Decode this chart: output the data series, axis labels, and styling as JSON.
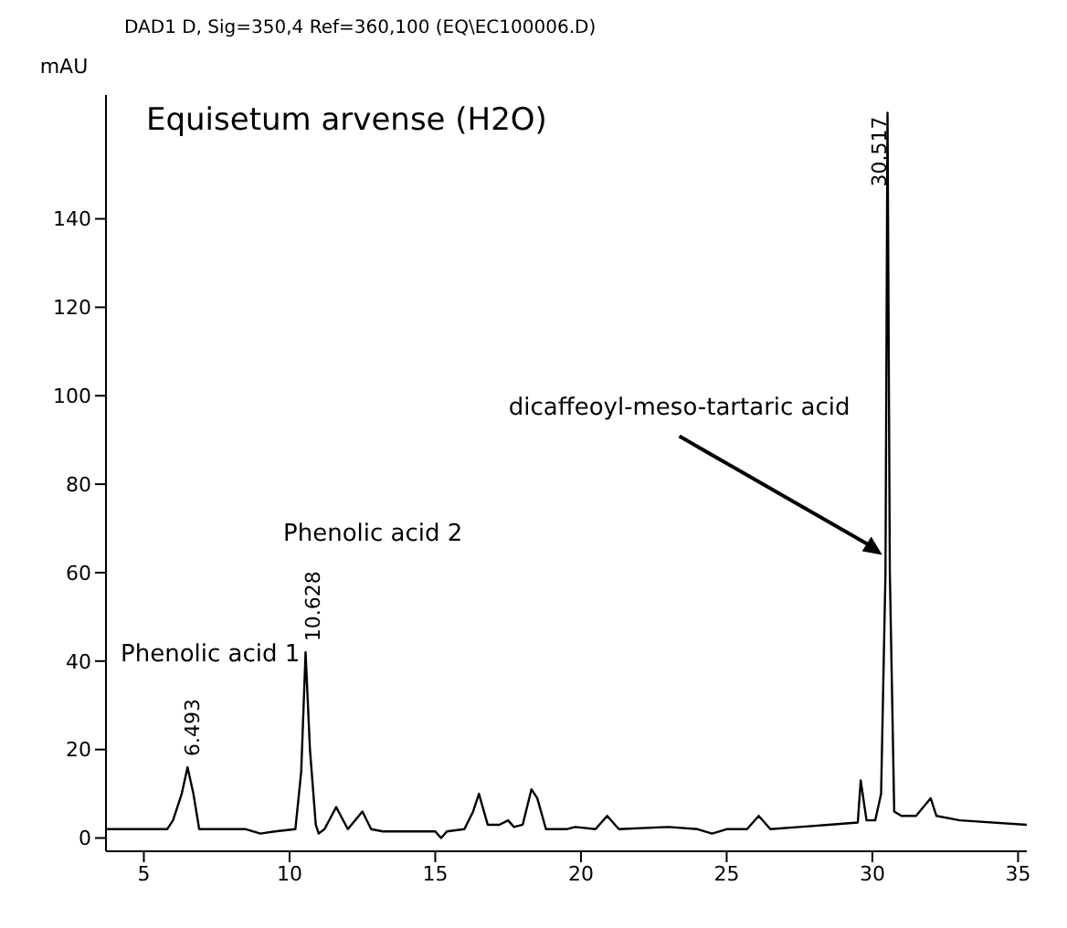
{
  "chart_data": {
    "type": "line",
    "subtitle": "DAD1 D, Sig=350,4 Ref=360,100 (EQ\\EC100006.D)",
    "title": "Equisetum arvense (H2O)",
    "ylabel": "mAU",
    "xlim": [
      3.7,
      35.3
    ],
    "xticks": [
      5,
      10,
      15,
      20,
      25,
      30,
      35
    ],
    "ylim": [
      -3,
      168
    ],
    "yticks": [
      0,
      20,
      40,
      60,
      80,
      100,
      120,
      140
    ],
    "grid": false,
    "marker": "none",
    "series": [
      {
        "color": "#000000",
        "x": [
          3.7,
          5.8,
          6.0,
          6.3,
          6.5,
          6.7,
          6.9,
          8.5,
          9.0,
          9.5,
          10.2,
          10.4,
          10.55,
          10.7,
          10.9,
          11.0,
          11.2,
          11.6,
          12.0,
          12.5,
          12.8,
          13.2,
          15.0,
          15.2,
          15.4,
          16.0,
          16.3,
          16.5,
          16.8,
          17.2,
          17.5,
          17.7,
          18.0,
          18.3,
          18.5,
          18.8,
          19.5,
          19.8,
          20.5,
          20.9,
          21.3,
          23.0,
          24.0,
          24.5,
          25.0,
          25.7,
          26.1,
          26.5,
          27.5,
          28.5,
          29.5,
          29.6,
          29.8,
          30.1,
          30.3,
          30.45,
          30.52,
          30.6,
          30.75,
          31.0,
          31.5,
          32.0,
          32.2,
          33.0,
          35.3
        ],
        "values": [
          2,
          2,
          4,
          10,
          16,
          10,
          2,
          2,
          1,
          1.5,
          2,
          15,
          42,
          20,
          3,
          1,
          2,
          7,
          2,
          6,
          2,
          1.5,
          1.5,
          0,
          1.5,
          2,
          6,
          10,
          3,
          3,
          4,
          2.5,
          3,
          11,
          9,
          2,
          2,
          2.5,
          2,
          5,
          2,
          2.5,
          2,
          1,
          2,
          2,
          5,
          2,
          2.5,
          3,
          3.5,
          13,
          4,
          4,
          10,
          60,
          164,
          60,
          6,
          5,
          5,
          9,
          5,
          4,
          3
        ]
      }
    ],
    "annotations": [
      {
        "text": "6.493",
        "x": 6.493,
        "y": 16
      },
      {
        "text": "10.628",
        "x": 10.628,
        "y": 42
      },
      {
        "text": "30.517",
        "x": 30.517,
        "y": 164
      },
      "Phenolic acid 1",
      "Phenolic acid 2",
      {
        "text": "dicaffeoyl-meso-tartaric acid",
        "x": 30.4,
        "y": 64
      }
    ]
  }
}
